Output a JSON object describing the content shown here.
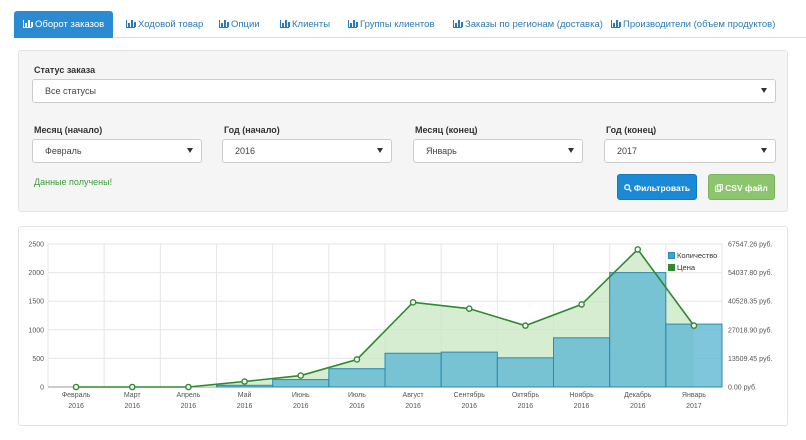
{
  "tabs": [
    {
      "label": "Оборот заказов",
      "active": true
    },
    {
      "label": "Ходовой товар",
      "active": false
    },
    {
      "label": "Опции",
      "active": false
    },
    {
      "label": "Клиенты",
      "active": false
    },
    {
      "label": "Группы клиентов",
      "active": false
    },
    {
      "label": "Заказы по регионам (доставка)",
      "active": false
    },
    {
      "label": "Производители (объем продуктов)",
      "active": false
    }
  ],
  "filters": {
    "status": {
      "label": "Статус заказа",
      "value": "Все статусы"
    },
    "month_start": {
      "label": "Месяц (начало)",
      "value": "Февраль"
    },
    "year_start": {
      "label": "Год (начало)",
      "value": "2016"
    },
    "month_end": {
      "label": "Месяц (конец)",
      "value": "Январь"
    },
    "year_end": {
      "label": "Год (конец)",
      "value": "2017"
    },
    "status_message": "Данные получены!",
    "filter_button": "Фильтровать",
    "csv_button": "CSV файл"
  },
  "colors": {
    "accent": "#2a8ad2",
    "bar_fill": "#5fb8d4",
    "bar_stroke": "#2a8ab0",
    "line": "#2f8a2f",
    "area_fill": "#c9e7c2",
    "success": "#3c9a3c",
    "csv_green": "#8cc56e"
  },
  "chart_data": {
    "type": "bar+line",
    "categories": [
      "Февраль 2016",
      "Март 2016",
      "Апрель 2016",
      "Май 2016",
      "Июнь 2016",
      "Июль 2016",
      "Август 2016",
      "Сентябрь 2016",
      "Октябрь 2016",
      "Ноябрь 2016",
      "Декабрь 2016",
      "Январь 2017"
    ],
    "x_tick_months": [
      "Февраль",
      "Март",
      "Апрель",
      "Май",
      "Июнь",
      "Июль",
      "Август",
      "Сентябрь",
      "Октябрь",
      "Ноябрь",
      "Декабрь",
      "Январь"
    ],
    "x_tick_years": [
      "2016",
      "2016",
      "2016",
      "2016",
      "2016",
      "2016",
      "2016",
      "2016",
      "2016",
      "2016",
      "2016",
      "2017"
    ],
    "series": [
      {
        "name": "Количество",
        "type": "bar",
        "axis": "left",
        "values": [
          0,
          0,
          0,
          30,
          130,
          320,
          590,
          610,
          510,
          860,
          2000,
          1100
        ]
      },
      {
        "name": "Цена",
        "type": "line",
        "axis": "right",
        "values": [
          0,
          0,
          0,
          2600,
          5400,
          13000,
          40000,
          37000,
          29000,
          39000,
          65000,
          29000
        ]
      }
    ],
    "left_axis": {
      "ticks": [
        "2500",
        "2000",
        "1500",
        "1000",
        "500",
        "0"
      ],
      "range": [
        0,
        2500
      ]
    },
    "right_axis": {
      "ticks": [
        "67547.26 руб.",
        "54037.80 руб.",
        "40528.35 руб.",
        "27018.90 руб.",
        "13509.45 руб.",
        "0.00 руб."
      ],
      "range": [
        0,
        67547.26
      ]
    },
    "legend": [
      "Количество",
      "Цена"
    ],
    "legend_position": "top-right"
  }
}
